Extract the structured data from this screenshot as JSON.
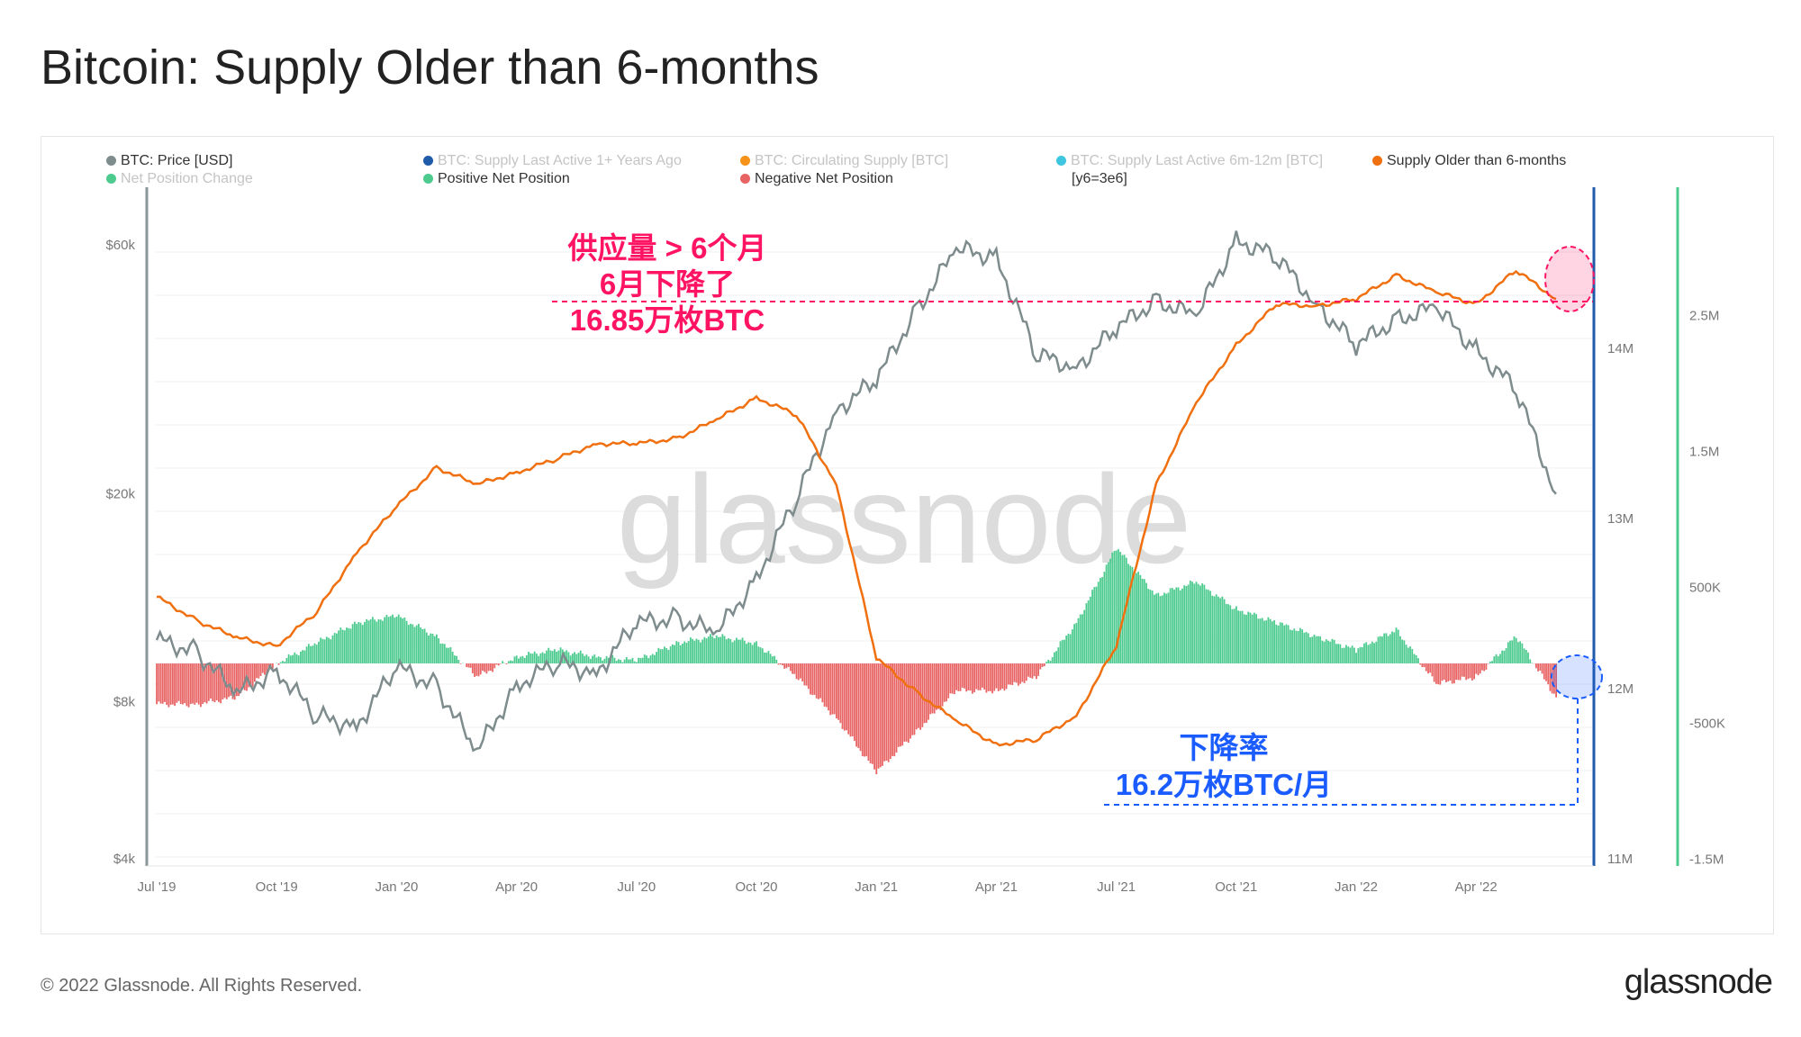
{
  "title": "Bitcoin: Supply Older than 6-months",
  "legend": [
    {
      "label": "BTC: Price [USD]",
      "color": "#7f8c8d",
      "active": true
    },
    {
      "label": "BTC: Supply Last Active 1+ Years Ago",
      "color": "#1f5ba8",
      "active": false
    },
    {
      "label": "BTC: Circulating Supply [BTC]",
      "color": "#f7931a",
      "active": false
    },
    {
      "label": "BTC: Supply Last Active 6m-12m [BTC]",
      "color": "#3ec6e0",
      "active": false
    },
    {
      "label": "Supply Older than 6-months",
      "color": "#f07010",
      "active": true
    },
    {
      "label": "Net Position Change",
      "color": "#4dcb8f",
      "active": false
    },
    {
      "label": "Positive Net Position",
      "color": "#4dcb8f",
      "active": true
    },
    {
      "label": "Negative Net Position",
      "color": "#e86464",
      "active": true
    },
    {
      "label": "[y6=3e6]",
      "color": "",
      "active": true
    }
  ],
  "chart_data": {
    "type": "line",
    "title": "Bitcoin: Supply Older than 6-months",
    "x": [
      "2019-07",
      "2019-08",
      "2019-09",
      "2019-10",
      "2019-11",
      "2019-12",
      "2020-01",
      "2020-02",
      "2020-03",
      "2020-04",
      "2020-05",
      "2020-06",
      "2020-07",
      "2020-08",
      "2020-09",
      "2020-10",
      "2020-11",
      "2020-12",
      "2021-01",
      "2021-02",
      "2021-03",
      "2021-04",
      "2021-05",
      "2021-06",
      "2021-07",
      "2021-08",
      "2021-09",
      "2021-10",
      "2021-11",
      "2021-12",
      "2022-01",
      "2022-02",
      "2022-03",
      "2022-04",
      "2022-05",
      "2022-06"
    ],
    "x_ticks": [
      "Jul '19",
      "Oct '19",
      "Jan '20",
      "Apr '20",
      "Jul '20",
      "Oct '20",
      "Jan '21",
      "Apr '21",
      "Jul '21",
      "Oct '21",
      "Jan '22",
      "Apr '22"
    ],
    "series": [
      {
        "name": "BTC: Price [USD]",
        "axis": "left-log",
        "color": "#7f8c8d",
        "values": [
          10500,
          10000,
          8300,
          9200,
          7500,
          7200,
          9300,
          8600,
          6400,
          8600,
          9500,
          9100,
          11300,
          11600,
          10800,
          13800,
          19600,
          29000,
          33000,
          45000,
          58800,
          57000,
          37000,
          35000,
          41500,
          47000,
          43800,
          61300,
          57000,
          46300,
          38500,
          43200,
          45500,
          37700,
          31800,
          20000
        ]
      },
      {
        "name": "Supply Older than 6-months",
        "axis": "right-supply",
        "color": "#f07010",
        "values": [
          12540000,
          12400000,
          12300000,
          12250000,
          12450000,
          12800000,
          13070000,
          13300000,
          13200000,
          13270000,
          13350000,
          13440000,
          13440000,
          13470000,
          13580000,
          13710000,
          13610000,
          13200000,
          12180000,
          11980000,
          11810000,
          11670000,
          11700000,
          11840000,
          12250000,
          13200000,
          13680000,
          14020000,
          14260000,
          14250000,
          14290000,
          14430000,
          14330000,
          14260000,
          14460000,
          14290000
        ]
      },
      {
        "name": "Net Position Change",
        "axis": "right-net",
        "positive_color": "#4dcb8f",
        "negative_color": "#e86464",
        "values": [
          -300000,
          -300000,
          -250000,
          0,
          150000,
          300000,
          350000,
          200000,
          -100000,
          50000,
          100000,
          50000,
          20000,
          150000,
          200000,
          150000,
          -100000,
          -400000,
          -800000,
          -500000,
          -200000,
          -200000,
          -100000,
          300000,
          850000,
          500000,
          600000,
          400000,
          300000,
          200000,
          100000,
          250000,
          -150000,
          -100000,
          200000,
          -250000
        ]
      }
    ],
    "y_left": {
      "scale": "log",
      "range": [
        4000,
        60000
      ],
      "ticks": [
        {
          "v": 4000,
          "label": "$4k"
        },
        {
          "v": 8000,
          "label": "$8k"
        },
        {
          "v": 20000,
          "label": "$20k"
        },
        {
          "v": 60000,
          "label": "$60k"
        }
      ]
    },
    "y_right_supply": {
      "range": [
        11000000,
        14000000
      ],
      "ticks": [
        {
          "v": 11000000,
          "label": "11M"
        },
        {
          "v": 12000000,
          "label": "12M"
        },
        {
          "v": 13000000,
          "label": "13M"
        },
        {
          "v": 14000000,
          "label": "14M"
        }
      ]
    },
    "y_right_net": {
      "range": [
        -1500000,
        2500000
      ],
      "ticks": [
        {
          "v": -1500000,
          "label": "-1.5M"
        },
        {
          "v": -500000,
          "label": "-500K"
        },
        {
          "v": 500000,
          "label": "500K"
        },
        {
          "v": 1500000,
          "label": "1.5M"
        },
        {
          "v": 2500000,
          "label": "2.5M"
        }
      ]
    },
    "watermark": "glassnode",
    "annotations": {
      "decline": {
        "lines": [
          "供应量 > 6个月",
          "6月下降了",
          "16.85万枚BTC"
        ],
        "color": "#ff1464"
      },
      "rate": {
        "lines": [
          "下降率",
          "16.2万枚BTC/月"
        ],
        "color": "#1a5cff"
      }
    },
    "grid": true
  },
  "footer": {
    "copyright": "© 2022 Glassnode. All Rights Reserved.",
    "logo": "glassnode"
  }
}
